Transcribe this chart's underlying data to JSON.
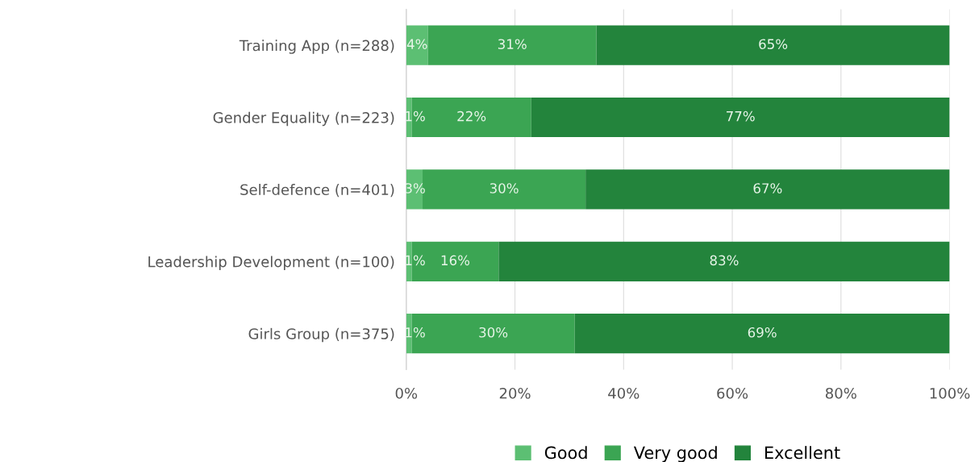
{
  "chart_data": {
    "type": "bar",
    "orientation": "horizontal",
    "stacked": true,
    "categories": [
      "Training App (n=288)",
      "Gender Equality (n=223)",
      "Self-defence (n=401)",
      "Leadership Development (n=100)",
      "Girls Group (n=375)"
    ],
    "series": [
      {
        "name": "Good",
        "color": "#5cbf73",
        "values": [
          4,
          1,
          3,
          1,
          1
        ],
        "value_labels": [
          "4%",
          "1%",
          "3%",
          "1%",
          "1%"
        ]
      },
      {
        "name": "Very good",
        "color": "#3ba553",
        "values": [
          31,
          22,
          30,
          16,
          30
        ],
        "value_labels": [
          "31%",
          "22%",
          "30%",
          "16%",
          "30%"
        ]
      },
      {
        "name": "Excellent",
        "color": "#23843c",
        "values": [
          65,
          77,
          67,
          83,
          69
        ],
        "value_labels": [
          "65%",
          "77%",
          "67%",
          "83%",
          "69%"
        ]
      }
    ],
    "xlim": [
      0,
      100
    ],
    "xticks": [
      {
        "value": 0,
        "label": "0%"
      },
      {
        "value": 20,
        "label": "20%"
      },
      {
        "value": 40,
        "label": "40%"
      },
      {
        "value": 60,
        "label": "60%"
      },
      {
        "value": 80,
        "label": "80%"
      },
      {
        "value": 100,
        "label": "100%"
      }
    ],
    "grid": "x",
    "legend": "bottom"
  }
}
